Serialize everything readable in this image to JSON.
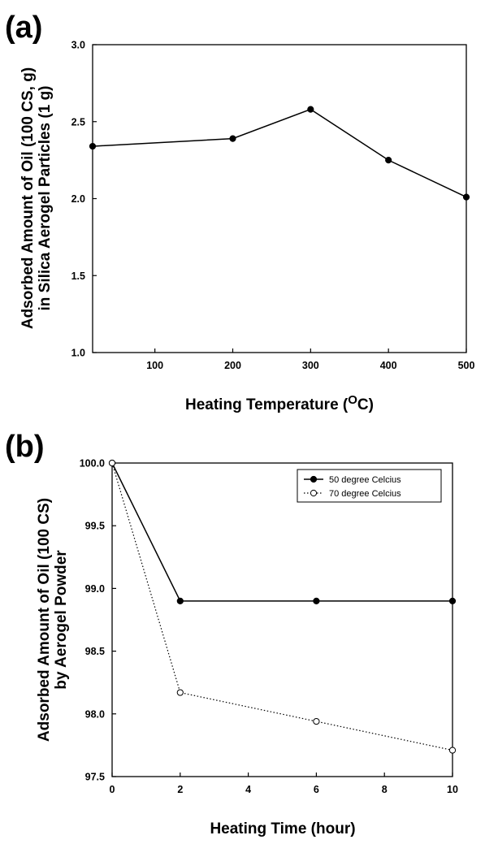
{
  "chart_data": [
    {
      "type": "line",
      "panel_label": "(a)",
      "title": "",
      "xlabel": "Heating Temperature (",
      "xlabel_superscript": "O",
      "xlabel_tail": "C)",
      "ylabel_lines": [
        "Adsorbed Amount of Oil (100 CS, g)",
        "in Silica Aerogel Particles (1 g)"
      ],
      "xlim": [
        20,
        500
      ],
      "ylim": [
        1.0,
        3.0
      ],
      "xticks": [
        100,
        200,
        300,
        400,
        500
      ],
      "yticks": [
        "1.0",
        "1.5",
        "2.0",
        "2.5",
        "3.0"
      ],
      "grid": false,
      "series": [
        {
          "x": [
            20,
            200,
            300,
            400,
            500
          ],
          "y": [
            2.34,
            2.39,
            2.58,
            2.25,
            2.01
          ],
          "marker": "filled-circle",
          "line": "solid",
          "color": "#000000"
        }
      ]
    },
    {
      "type": "line",
      "panel_label": "(b)",
      "title": "",
      "xlabel": "Heating Time (hour)",
      "ylabel_lines": [
        "Adsorbed Amount of Oil (100 CS)",
        "by Aerogel Powder"
      ],
      "xlim": [
        0,
        10
      ],
      "ylim": [
        97.5,
        100.0
      ],
      "xticks": [
        "0",
        "2",
        "4",
        "6",
        "8",
        "10"
      ],
      "yticks": [
        "97.5",
        "98.0",
        "98.5",
        "99.0",
        "99.5",
        "100.0"
      ],
      "grid": false,
      "legend_position": "top-right",
      "series": [
        {
          "name": "50 degree Celcius",
          "x": [
            0,
            2,
            6,
            10
          ],
          "y": [
            100.0,
            98.9,
            98.9,
            98.9
          ],
          "marker": "filled-circle",
          "line": "solid",
          "color": "#000000"
        },
        {
          "name": "70 degree Celcius",
          "x": [
            0,
            2,
            6,
            10
          ],
          "y": [
            100.0,
            98.17,
            97.94,
            97.71
          ],
          "marker": "open-circle",
          "line": "dotted",
          "color": "#000000"
        }
      ]
    }
  ]
}
